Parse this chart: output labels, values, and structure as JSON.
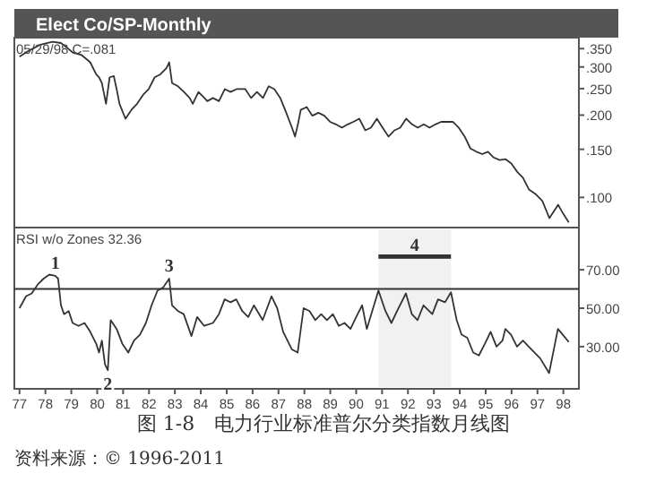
{
  "chart_data": [
    {
      "type": "line",
      "title": "Elect Co/SP-Monthly",
      "log": true,
      "grid": false,
      "tick_labels": "y",
      "annotations": [
        "05/29/98  C=.081"
      ],
      "xlim": [
        1976.8,
        1998.6
      ],
      "ylim": [
        0.0776,
        0.384
      ],
      "yticks": [
        {
          "value": 0.35,
          "label": ".350"
        },
        {
          "value": 0.3,
          "label": ".300"
        },
        {
          "value": 0.25,
          "label": ".250"
        },
        {
          "value": 0.2,
          "label": ".200"
        },
        {
          "value": 0.15,
          "label": ".150"
        },
        {
          "value": 0.1,
          "label": ".100"
        }
      ],
      "series": [
        {
          "color": "#333333",
          "x": [
            1977.0,
            1977.36,
            1977.81,
            1978.27,
            1978.6,
            1978.83,
            1979.05,
            1979.39,
            1979.73,
            1979.96,
            1980.07,
            1980.18,
            1980.34,
            1980.48,
            1980.64,
            1980.75,
            1980.86,
            1981.09,
            1981.32,
            1981.54,
            1981.77,
            1981.99,
            1982.22,
            1982.44,
            1982.67,
            1982.78,
            1982.89,
            1983.12,
            1983.35,
            1983.57,
            1983.69,
            1983.91,
            1984.14,
            1984.25,
            1984.47,
            1984.7,
            1984.93,
            1985.15,
            1985.38,
            1985.72,
            1985.94,
            1986.17,
            1986.4,
            1986.62,
            1986.84,
            1987.07,
            1987.3,
            1987.52,
            1987.64,
            1987.75,
            1987.86,
            1988.09,
            1988.31,
            1988.54,
            1988.77,
            1988.99,
            1989.22,
            1989.45,
            1989.67,
            1989.89,
            1990.12,
            1990.35,
            1990.57,
            1990.8,
            1991.02,
            1991.25,
            1991.48,
            1991.7,
            1991.93,
            1992.16,
            1992.38,
            1992.61,
            1992.83,
            1993.06,
            1993.28,
            1993.51,
            1993.73,
            1993.96,
            1994.19,
            1994.41,
            1994.64,
            1994.87,
            1995.09,
            1995.31,
            1995.54,
            1995.77,
            1995.99,
            1996.22,
            1996.44,
            1996.67,
            1996.92,
            1997.19,
            1997.46,
            1997.8,
            1998.0,
            1998.21
          ],
          "values": [
            0.327,
            0.344,
            0.362,
            0.371,
            0.367,
            0.353,
            0.339,
            0.332,
            0.312,
            0.282,
            0.275,
            0.262,
            0.22,
            0.275,
            0.278,
            0.249,
            0.22,
            0.194,
            0.209,
            0.22,
            0.237,
            0.249,
            0.275,
            0.282,
            0.297,
            0.312,
            0.262,
            0.255,
            0.243,
            0.231,
            0.22,
            0.243,
            0.231,
            0.225,
            0.231,
            0.225,
            0.249,
            0.243,
            0.249,
            0.249,
            0.231,
            0.243,
            0.231,
            0.255,
            0.249,
            0.231,
            0.204,
            0.18,
            0.167,
            0.185,
            0.209,
            0.214,
            0.199,
            0.204,
            0.199,
            0.189,
            0.185,
            0.18,
            0.185,
            0.189,
            0.194,
            0.176,
            0.18,
            0.194,
            0.18,
            0.167,
            0.176,
            0.18,
            0.194,
            0.185,
            0.18,
            0.185,
            0.18,
            0.185,
            0.189,
            0.189,
            0.189,
            0.18,
            0.167,
            0.151,
            0.147,
            0.144,
            0.147,
            0.14,
            0.137,
            0.138,
            0.133,
            0.124,
            0.118,
            0.107,
            0.103,
            0.097,
            0.084,
            0.094,
            0.087,
            0.081
          ]
        }
      ]
    },
    {
      "type": "line",
      "grid": false,
      "annotations": [
        "RSI w/o Zones  32.36",
        {
          "text": "1",
          "x": 1978.38,
          "y": 66.9
        },
        {
          "text": "2",
          "x": 1980.41,
          "y": 17.7
        },
        {
          "text": "3",
          "x": 1982.78,
          "y": 65.4
        },
        "图 1-8　电力行业标准普尔分类指数月线图",
        "资料来源：© 1996-2011"
      ],
      "xlim": [
        1976.8,
        1998.6
      ],
      "ylim": [
        8,
        92
      ],
      "xticks": [
        {
          "value": 1977,
          "label": "77"
        },
        {
          "value": 1978,
          "label": "78"
        },
        {
          "value": 1979,
          "label": "79"
        },
        {
          "value": 1980,
          "label": "80"
        },
        {
          "value": 1981,
          "label": "81"
        },
        {
          "value": 1982,
          "label": "82"
        },
        {
          "value": 1983,
          "label": "83"
        },
        {
          "value": 1984,
          "label": "84"
        },
        {
          "value": 1985,
          "label": "85"
        },
        {
          "value": 1986,
          "label": "86"
        },
        {
          "value": 1987,
          "label": "87"
        },
        {
          "value": 1988,
          "label": "88"
        },
        {
          "value": 1989,
          "label": "89"
        },
        {
          "value": 1990,
          "label": "90"
        },
        {
          "value": 1991,
          "label": "91"
        },
        {
          "value": 1992,
          "label": "92"
        },
        {
          "value": 1993,
          "label": "93"
        },
        {
          "value": 1994,
          "label": "94"
        },
        {
          "value": 1995,
          "label": "95"
        },
        {
          "value": 1996,
          "label": "96"
        },
        {
          "value": 1997,
          "label": "97"
        },
        {
          "value": 1998,
          "label": "98"
        }
      ],
      "yticks": [
        {
          "value": 70,
          "label": "70.00"
        },
        {
          "value": 50,
          "label": "50.00"
        },
        {
          "value": 30,
          "label": "30.00"
        }
      ],
      "ref_lines": [
        {
          "axis": "y",
          "value": 60,
          "color": "#333333"
        }
      ],
      "bands": [
        {
          "axis": "x",
          "from": 1990.86,
          "to": 1993.66,
          "label": "4",
          "color": "#333333"
        }
      ],
      "series": [
        {
          "color": "#333333",
          "x": [
            1977.0,
            1977.25,
            1977.47,
            1977.7,
            1977.93,
            1978.15,
            1978.38,
            1978.49,
            1978.6,
            1978.72,
            1978.9,
            1979.05,
            1979.28,
            1979.51,
            1979.73,
            1979.96,
            1980.07,
            1980.18,
            1980.3,
            1980.41,
            1980.52,
            1980.75,
            1980.97,
            1981.2,
            1981.42,
            1981.65,
            1981.88,
            1982.1,
            1982.33,
            1982.55,
            1982.78,
            1982.89,
            1983.12,
            1983.34,
            1983.64,
            1983.86,
            1984.13,
            1984.47,
            1984.7,
            1984.92,
            1985.15,
            1985.37,
            1985.6,
            1985.83,
            1986.05,
            1986.39,
            1986.73,
            1986.95,
            1987.18,
            1987.52,
            1987.74,
            1987.97,
            1988.2,
            1988.42,
            1988.65,
            1988.87,
            1989.1,
            1989.33,
            1989.55,
            1989.78,
            1990.0,
            1990.23,
            1990.41,
            1990.86,
            1991.13,
            1991.36,
            1991.58,
            1991.92,
            1992.15,
            1992.37,
            1992.6,
            1992.94,
            1993.16,
            1993.43,
            1993.66,
            1993.88,
            1994.07,
            1994.29,
            1994.52,
            1994.74,
            1994.97,
            1995.19,
            1995.42,
            1995.65,
            1995.76,
            1995.98,
            1996.21,
            1996.44,
            1996.77,
            1997.11,
            1997.45,
            1997.79,
            1998.02,
            1998.21
          ],
          "values": [
            50,
            56.2,
            57.7,
            62.3,
            65.4,
            67.5,
            66.9,
            65.4,
            51.5,
            46.9,
            48.5,
            42.3,
            40.8,
            42.3,
            37.7,
            31.5,
            26.9,
            33.1,
            20.8,
            17.7,
            43.8,
            39.2,
            31.5,
            26.9,
            33.1,
            36.2,
            42.3,
            51.5,
            59.2,
            60.8,
            65.4,
            51.5,
            48.5,
            46.9,
            35.5,
            45.4,
            40.8,
            42.3,
            46.9,
            54.6,
            53.1,
            54.6,
            48.5,
            45.4,
            51.5,
            43.8,
            56.2,
            50,
            37.7,
            28.5,
            26.9,
            50,
            48.5,
            43.8,
            46.9,
            43.8,
            46.9,
            40.8,
            42.3,
            39.2,
            45.4,
            51.5,
            39.2,
            59.2,
            48.5,
            42.3,
            48.5,
            57.7,
            46.9,
            43.8,
            51.5,
            46.9,
            54.6,
            53.1,
            58.3,
            43.8,
            36.2,
            34.6,
            26.9,
            25.4,
            31.5,
            37.7,
            30.0,
            33.1,
            39.2,
            36.2,
            30.0,
            33.1,
            28.5,
            23.8,
            16.2,
            39.2,
            35.5,
            32.36
          ]
        }
      ]
    }
  ]
}
